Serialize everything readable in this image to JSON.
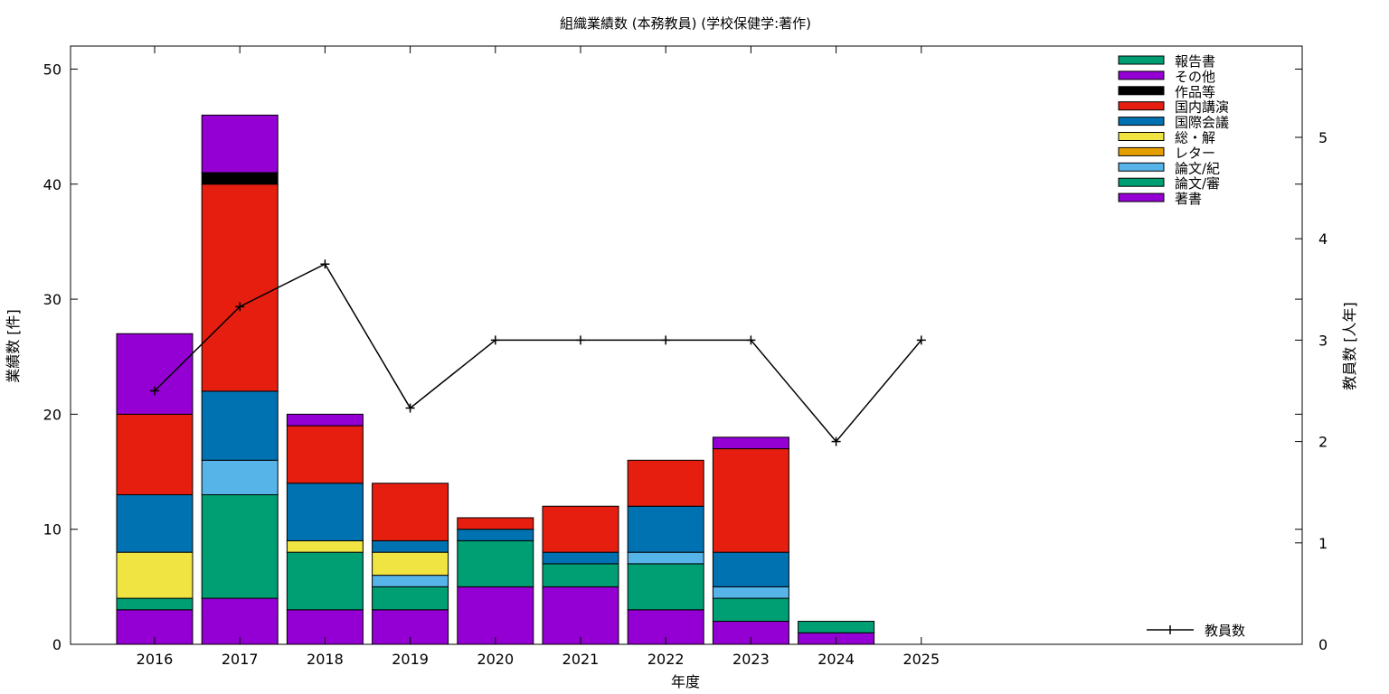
{
  "chart_data": {
    "type": "bar",
    "stacked": true,
    "title": "組織業績数 (本務教員) (学校保健学:著作)",
    "xlabel": "年度",
    "ylabel": "業績数 [件]",
    "y2label": "教員数 [人年]",
    "categories": [
      "2016",
      "2017",
      "2018",
      "2019",
      "2020",
      "2021",
      "2022",
      "2023",
      "2024",
      "2025"
    ],
    "ylim": [
      0,
      52
    ],
    "yticks": [
      0,
      10,
      20,
      30,
      40,
      50
    ],
    "y2lim": [
      0,
      5.9
    ],
    "y2ticks": [
      0,
      1,
      2,
      3,
      4,
      5
    ],
    "legend_position": "top-right",
    "series": [
      {
        "name": "著書",
        "color": "#9400d3",
        "values": [
          3,
          4,
          3,
          3,
          5,
          5,
          3,
          2,
          1,
          0
        ]
      },
      {
        "name": "論文/審",
        "color": "#009e73",
        "values": [
          1,
          9,
          5,
          2,
          4,
          2,
          4,
          2,
          1,
          0
        ]
      },
      {
        "name": "論文/紀",
        "color": "#56b4e9",
        "values": [
          0,
          3,
          0,
          1,
          0,
          0,
          1,
          1,
          0,
          0
        ]
      },
      {
        "name": "レター",
        "color": "#e69f00",
        "values": [
          0,
          0,
          0,
          0,
          0,
          0,
          0,
          0,
          0,
          0
        ]
      },
      {
        "name": "総・解",
        "color": "#f0e442",
        "values": [
          4,
          0,
          1,
          2,
          0,
          0,
          0,
          0,
          0,
          0
        ]
      },
      {
        "name": "国際会議",
        "color": "#0072b2",
        "values": [
          5,
          6,
          5,
          1,
          1,
          1,
          4,
          3,
          0,
          0
        ]
      },
      {
        "name": "国内講演",
        "color": "#e51e10",
        "values": [
          7,
          18,
          5,
          5,
          1,
          4,
          4,
          9,
          0,
          0
        ]
      },
      {
        "name": "作品等",
        "color": "#000000",
        "values": [
          0,
          1,
          0,
          0,
          0,
          0,
          0,
          0,
          0,
          0
        ]
      },
      {
        "name": "その他",
        "color": "#9400d3",
        "values": [
          7,
          5,
          1,
          0,
          0,
          0,
          0,
          1,
          0,
          0
        ]
      },
      {
        "name": "報告書",
        "color": "#009e73",
        "values": [
          0,
          0,
          0,
          0,
          0,
          0,
          0,
          0,
          0,
          0
        ]
      }
    ],
    "line": {
      "name": "教員数",
      "color": "#000000",
      "values": [
        2.5,
        3.33,
        3.75,
        2.33,
        3,
        3,
        3,
        3,
        2,
        3
      ]
    }
  }
}
